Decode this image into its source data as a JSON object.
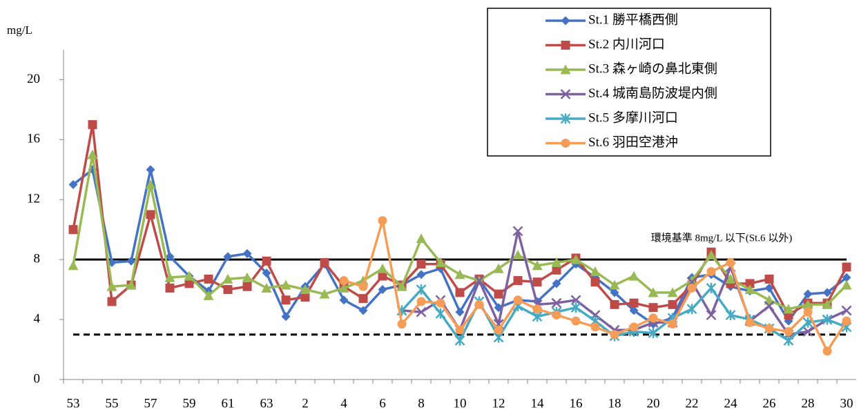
{
  "chart_data": {
    "type": "line",
    "y_label": "mg/L",
    "categories": [
      "53",
      null,
      "55",
      null,
      "57",
      null,
      "59",
      null,
      "61",
      null,
      "63",
      null,
      "2",
      null,
      "4",
      null,
      "6",
      null,
      "8",
      null,
      "10",
      null,
      "12",
      null,
      "14",
      null,
      "16",
      null,
      "18",
      null,
      "20",
      null,
      "22",
      null,
      "24",
      null,
      "26",
      null,
      "28",
      null,
      "30"
    ],
    "ylim": [
      0,
      22
    ],
    "yticks": [
      0,
      4,
      8,
      12,
      16,
      20
    ],
    "grid": false,
    "legend": "top-right",
    "reference_lines": [
      {
        "value": 8,
        "color": "#000000",
        "style": "solid"
      },
      {
        "value": 3,
        "color": "#000000",
        "style": "dashed"
      }
    ],
    "annotation": "環境基準 8mg/L 以下(St.6 以外)",
    "series": [
      {
        "name": "St.1 勝平橋西側",
        "color": "#4472c4",
        "marker": "diamond",
        "values": [
          13,
          14,
          7.8,
          7.9,
          14,
          8.2,
          6.9,
          5.9,
          8.2,
          8.4,
          7.1,
          4.2,
          6.2,
          7.7,
          5.3,
          4.6,
          6.0,
          6.3,
          7.0,
          7.4,
          4.5,
          6.7,
          4.8,
          5.3,
          5.2,
          6.4,
          7.7,
          6.8,
          5.8,
          4.6,
          3.7,
          4.1,
          6.8,
          7.0,
          6.2,
          5.9,
          6.1,
          3.9,
          5.7,
          5.8,
          6.8
        ]
      },
      {
        "name": "St.2 内川河口",
        "color": "#be4b48",
        "marker": "square",
        "values": [
          10,
          17,
          5.2,
          6.3,
          11,
          6.1,
          6.4,
          6.7,
          6.0,
          6.2,
          7.9,
          5.3,
          5.5,
          7.8,
          6.2,
          5.4,
          6.9,
          6.3,
          7.7,
          7.7,
          5.8,
          6.7,
          5.7,
          6.6,
          6.5,
          7.3,
          8.1,
          6.5,
          5.0,
          5.1,
          4.8,
          5.0,
          6.3,
          8.5,
          6.4,
          6.4,
          6.7,
          4.3,
          5.1,
          5.1,
          7.5
        ]
      },
      {
        "name": "St.3 森ヶ崎の鼻北東側",
        "color": "#98b954",
        "marker": "triangle",
        "values": [
          7.6,
          15,
          6.2,
          6.3,
          13,
          6.8,
          6.9,
          5.6,
          6.7,
          6.8,
          6.1,
          6.3,
          6.0,
          5.7,
          6.1,
          6.6,
          7.4,
          6.2,
          9.4,
          7.8,
          7.0,
          6.6,
          7.4,
          8.3,
          7.6,
          7.8,
          8.0,
          7.2,
          6.3,
          6.9,
          5.8,
          5.8,
          6.6,
          8.3,
          6.7,
          6.0,
          5.3,
          4.7,
          5.0,
          5.0,
          6.3
        ]
      },
      {
        "name": "St.4 城南島防波堤内側",
        "color": "#7d60a0",
        "marker": "x",
        "values": [
          null,
          null,
          null,
          null,
          null,
          null,
          null,
          null,
          null,
          null,
          null,
          null,
          null,
          null,
          null,
          null,
          null,
          4.6,
          4.5,
          5.3,
          3.3,
          6.6,
          3.7,
          9.9,
          5.0,
          5.1,
          5.3,
          4.3,
          3.3,
          3.3,
          3.8,
          3.8,
          6.5,
          4.3,
          7.5,
          3.9,
          4.9,
          3.0,
          3.2,
          4.0,
          4.6
        ]
      },
      {
        "name": "St.5 多摩川河口",
        "color": "#46aac5",
        "marker": "star",
        "values": [
          null,
          null,
          null,
          null,
          null,
          null,
          null,
          null,
          null,
          null,
          null,
          null,
          null,
          null,
          null,
          null,
          null,
          4.6,
          6.0,
          4.4,
          2.6,
          5.2,
          2.8,
          4.9,
          4.2,
          4.5,
          4.8,
          3.9,
          2.9,
          3.2,
          3.1,
          4.1,
          4.7,
          6.1,
          4.3,
          4.0,
          3.4,
          2.6,
          3.8,
          4.0,
          3.5
        ]
      },
      {
        "name": "St.6 羽田空港沖",
        "color": "#f59d56",
        "marker": "circle",
        "values": [
          null,
          null,
          null,
          null,
          null,
          null,
          null,
          null,
          null,
          null,
          null,
          null,
          null,
          null,
          6.6,
          6.2,
          10.6,
          3.7,
          5.2,
          5.1,
          3.3,
          5.0,
          3.3,
          5.3,
          4.7,
          4.3,
          3.9,
          3.5,
          3.0,
          3.5,
          4.1,
          3.7,
          6.1,
          7.2,
          7.8,
          3.8,
          3.4,
          3.2,
          4.5,
          1.9,
          3.9
        ]
      }
    ]
  }
}
